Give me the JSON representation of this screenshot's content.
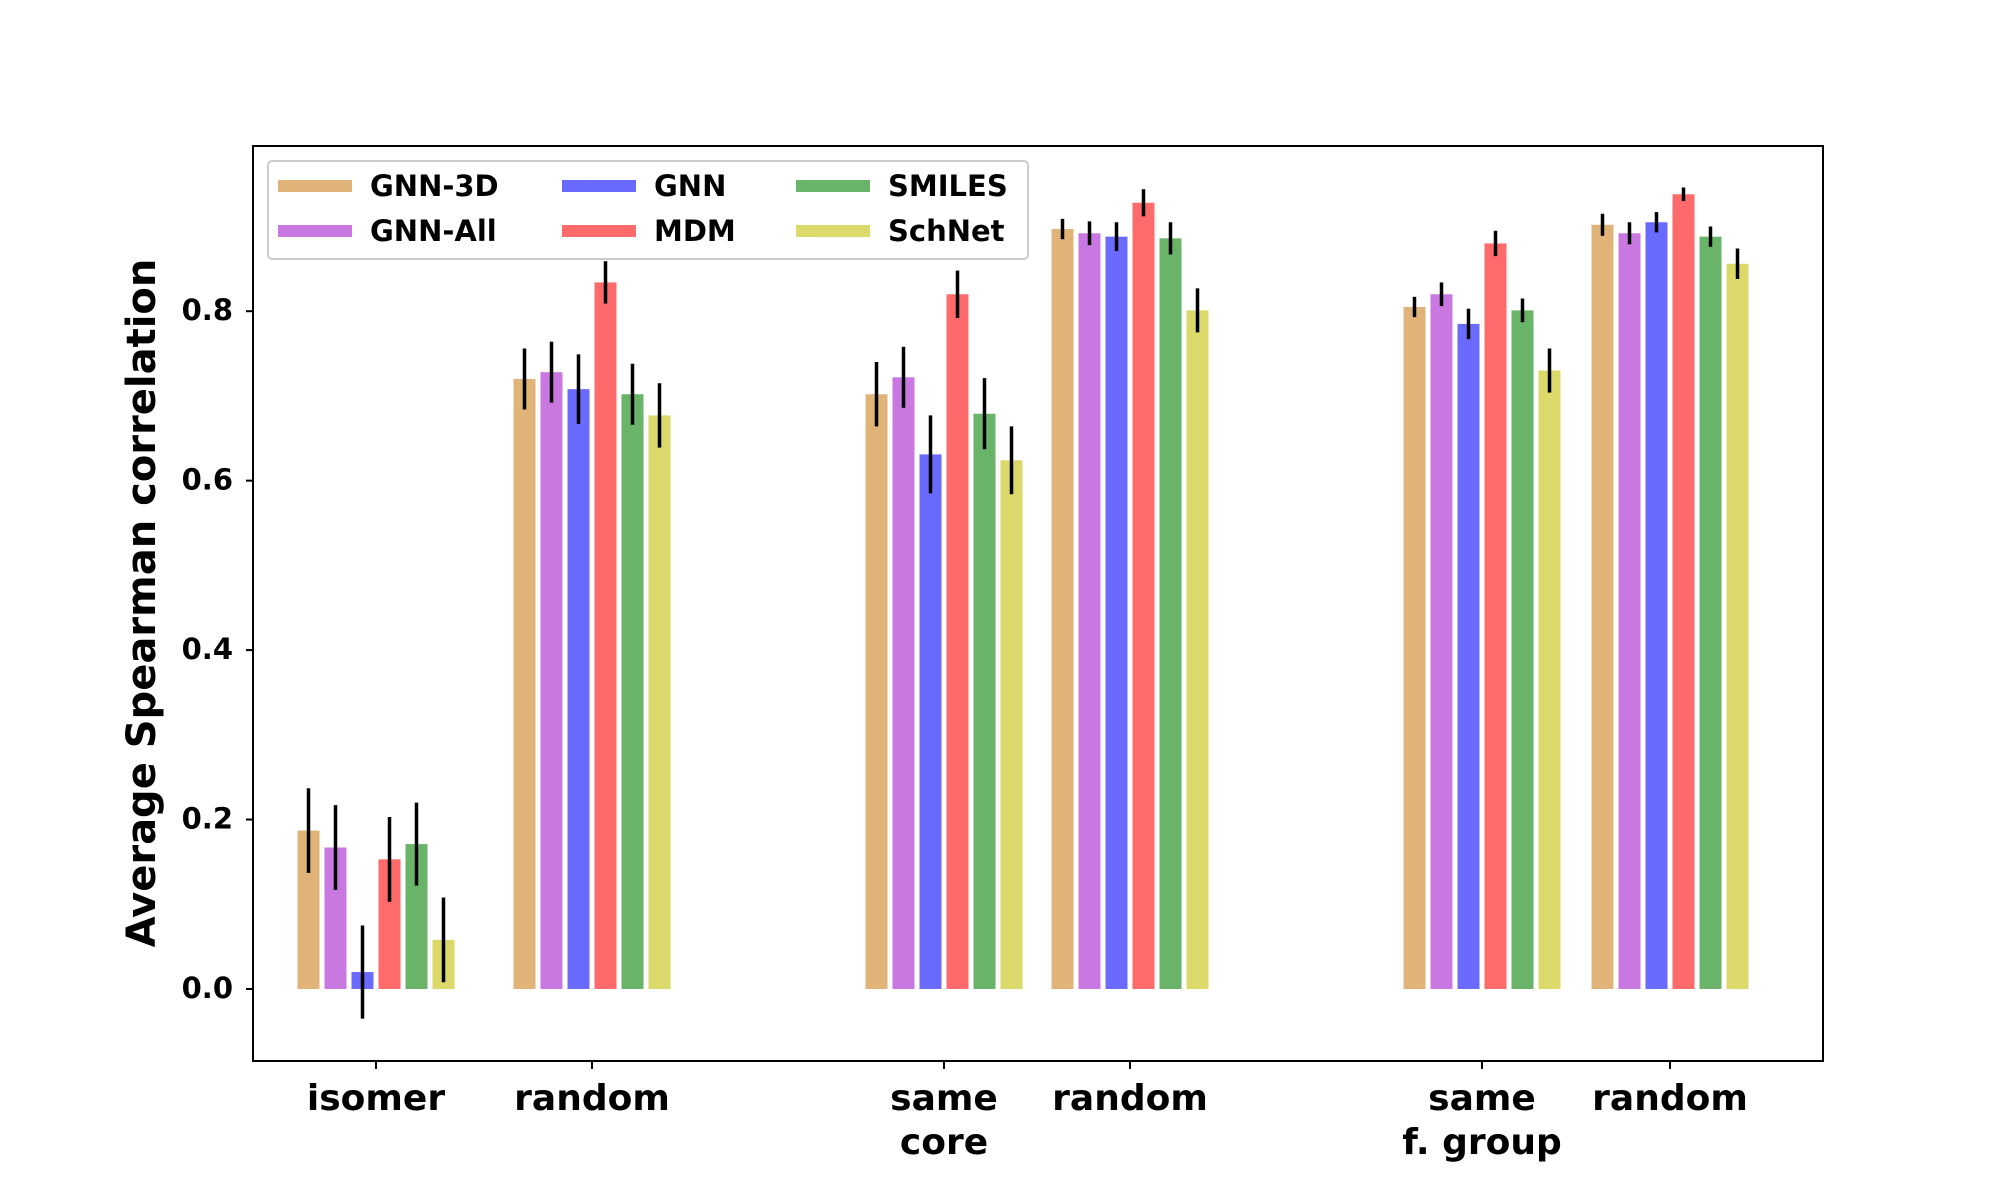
{
  "chart_data": {
    "type": "bar",
    "ylabel": "Average Spearman correlation",
    "ylim": [
      -0.085,
      0.995
    ],
    "yticks": [
      0.0,
      0.2,
      0.4,
      0.6,
      0.8
    ],
    "ytick_labels": [
      "0.0",
      "0.2",
      "0.4",
      "0.6",
      "0.8"
    ],
    "grid": false,
    "legend": {
      "placement": "top-left",
      "columns": 3
    },
    "categories": [
      {
        "lines": [
          "isomer"
        ]
      },
      {
        "lines": [
          "random"
        ]
      },
      {
        "lines": [
          "same",
          "core"
        ]
      },
      {
        "lines": [
          "random"
        ]
      },
      {
        "lines": [
          "same",
          "f. group"
        ]
      },
      {
        "lines": [
          "random"
        ]
      }
    ],
    "series": [
      {
        "name": "GNN-3D",
        "color": "#e0b378",
        "values": [
          0.187,
          0.72,
          0.702,
          0.897,
          0.805,
          0.902
        ],
        "errors": [
          0.05,
          0.036,
          0.038,
          0.012,
          0.012,
          0.013
        ]
      },
      {
        "name": "GNN-All",
        "color": "#c878e0",
        "values": [
          0.167,
          0.728,
          0.722,
          0.892,
          0.82,
          0.892
        ],
        "errors": [
          0.05,
          0.036,
          0.036,
          0.014,
          0.014,
          0.013
        ]
      },
      {
        "name": "GNN",
        "color": "#6a6aff",
        "values": [
          0.02,
          0.708,
          0.631,
          0.888,
          0.785,
          0.905
        ],
        "errors": [
          0.055,
          0.041,
          0.046,
          0.017,
          0.018,
          0.012
        ]
      },
      {
        "name": "MDM",
        "color": "#ff6a6a",
        "values": [
          0.153,
          0.834,
          0.82,
          0.928,
          0.88,
          0.938
        ],
        "errors": [
          0.05,
          0.025,
          0.028,
          0.016,
          0.015,
          0.008
        ]
      },
      {
        "name": "SMILES",
        "color": "#6ab46a",
        "values": [
          0.171,
          0.702,
          0.679,
          0.886,
          0.801,
          0.888
        ],
        "errors": [
          0.049,
          0.036,
          0.042,
          0.019,
          0.014,
          0.012
        ]
      },
      {
        "name": "SchNet",
        "color": "#dad96a",
        "values": [
          0.058,
          0.677,
          0.624,
          0.801,
          0.73,
          0.856
        ],
        "errors": [
          0.05,
          0.038,
          0.04,
          0.026,
          0.026,
          0.018
        ]
      }
    ]
  }
}
